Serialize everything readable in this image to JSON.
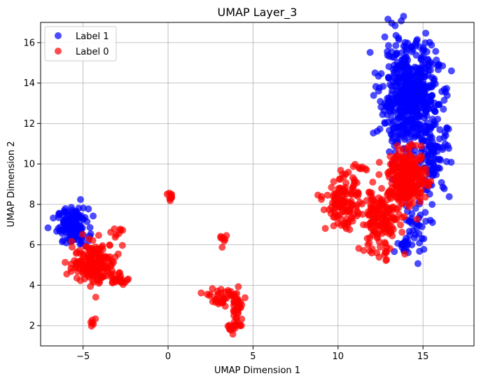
{
  "chart_data": {
    "type": "scatter",
    "title": "UMAP Layer_3",
    "xlabel": "UMAP Dimension 1",
    "ylabel": "UMAP Dimension 2",
    "xlim": [
      -7.5,
      18
    ],
    "ylim": [
      1,
      17
    ],
    "xticks": [
      -5,
      0,
      5,
      10,
      15
    ],
    "yticks": [
      2,
      4,
      6,
      8,
      10,
      12,
      14,
      16
    ],
    "grid": true,
    "legend_position": "top-left",
    "series": [
      {
        "name": "Label 1",
        "color": "#0000ff",
        "clusters": [
          {
            "center": [
              -5.6,
              6.9
            ],
            "spread": [
              0.45,
              0.45
            ],
            "count": 140
          },
          {
            "center": [
              14.2,
              13.3
            ],
            "spread": [
              0.85,
              1.35
            ],
            "count": 560
          },
          {
            "center": [
              15.6,
              10.2
            ],
            "spread": [
              0.5,
              0.9
            ],
            "count": 90
          },
          {
            "center": [
              14.5,
              6.9
            ],
            "spread": [
              0.5,
              0.7
            ],
            "count": 40
          },
          {
            "center": [
              13.9,
              5.9
            ],
            "spread": [
              0.2,
              0.2
            ],
            "count": 14
          }
        ]
      },
      {
        "name": "Label 0",
        "color": "#ff0000",
        "clusters": [
          {
            "center": [
              -4.3,
              5.1
            ],
            "spread": [
              0.65,
              0.5
            ],
            "count": 200
          },
          {
            "center": [
              -2.8,
              4.2
            ],
            "spread": [
              0.3,
              0.2
            ],
            "count": 20
          },
          {
            "center": [
              -2.9,
              6.6
            ],
            "spread": [
              0.2,
              0.15
            ],
            "count": 8
          },
          {
            "center": [
              -4.4,
              2.2
            ],
            "spread": [
              0.08,
              0.12
            ],
            "count": 6
          },
          {
            "center": [
              0.1,
              8.35
            ],
            "spread": [
              0.15,
              0.08
            ],
            "count": 10
          },
          {
            "center": [
              3.3,
              6.3
            ],
            "spread": [
              0.15,
              0.15
            ],
            "count": 8
          },
          {
            "center": [
              3.3,
              3.4
            ],
            "spread": [
              0.45,
              0.25
            ],
            "count": 45
          },
          {
            "center": [
              4.1,
              2.8
            ],
            "spread": [
              0.15,
              0.4
            ],
            "count": 25
          },
          {
            "center": [
              3.8,
              1.95
            ],
            "spread": [
              0.25,
              0.15
            ],
            "count": 16
          },
          {
            "center": [
              10.3,
              8.0
            ],
            "spread": [
              0.5,
              0.6
            ],
            "count": 130
          },
          {
            "center": [
              12.5,
              7.2
            ],
            "spread": [
              0.6,
              0.8
            ],
            "count": 160
          },
          {
            "center": [
              14.1,
              9.3
            ],
            "spread": [
              0.55,
              0.65
            ],
            "count": 260
          },
          {
            "center": [
              12.8,
              5.4
            ],
            "spread": [
              0.1,
              0.2
            ],
            "count": 6
          },
          {
            "center": [
              11.2,
              9.8
            ],
            "spread": [
              0.4,
              0.2
            ],
            "count": 10
          }
        ]
      }
    ]
  }
}
